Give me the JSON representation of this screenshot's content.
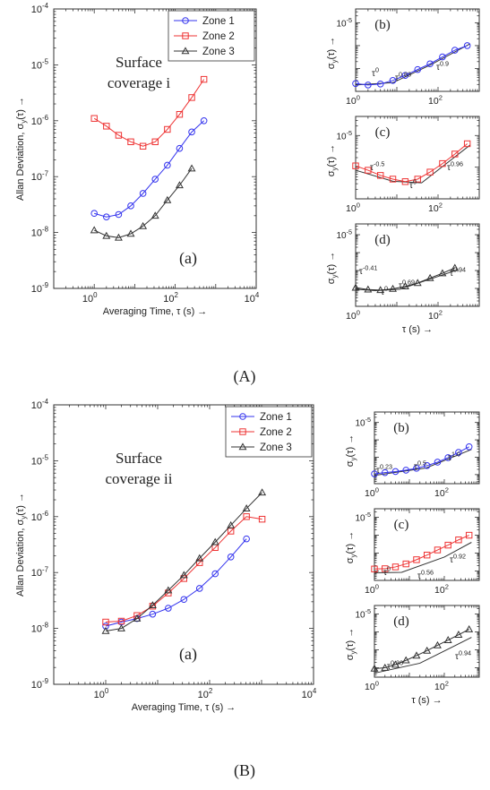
{
  "figure_labels": [
    "(A)",
    "(B)"
  ],
  "axis_labels": {
    "main_y": "Allan Deviation, σ",
    "main_y_sub": "y",
    "main_y_tail": "(τ) →",
    "main_x": "Averaging Time, τ (s) →",
    "small_y": "σ",
    "small_y_sub": "y",
    "small_y_tail": "(τ) →",
    "small_x": "τ (s) →"
  },
  "main_y_ticks": [
    {
      "base": "10",
      "exp": "-9"
    },
    {
      "base": "10",
      "exp": "-8"
    },
    {
      "base": "10",
      "exp": "-7"
    },
    {
      "base": "10",
      "exp": "-6"
    },
    {
      "base": "10",
      "exp": "-5"
    },
    {
      "base": "10",
      "exp": "-4"
    }
  ],
  "main_x_ticks": [
    {
      "base": "10",
      "exp": "0"
    },
    {
      "base": "10",
      "exp": "2"
    },
    {
      "base": "10",
      "exp": "4"
    }
  ],
  "small_x_ticks": [
    {
      "base": "10",
      "exp": "0"
    },
    {
      "base": "10",
      "exp": "2"
    }
  ],
  "small_y_tick": {
    "base": "10",
    "exp": "-5"
  },
  "colors": {
    "zone1": "#3333ee",
    "zone2": "#ee3333",
    "zone3": "#333333",
    "fit": "#333333"
  },
  "chart_data": [
    {
      "id": "A-main",
      "type": "line",
      "panel_label": "(a)",
      "annotation": [
        "Surface",
        "coverage  i"
      ],
      "xscale": "log",
      "yscale": "log",
      "xlim": [
        0.1,
        10000
      ],
      "ylim": [
        1e-09,
        0.0001
      ],
      "legend": "top-right",
      "series": [
        {
          "name": "Zone 1",
          "marker": "circle",
          "color": "#3333ee",
          "x": [
            1,
            2,
            4,
            8,
            16,
            32,
            64,
            128,
            256,
            512
          ],
          "y": [
            2.2e-08,
            1.9e-08,
            2.1e-08,
            3e-08,
            5e-08,
            9e-08,
            1.6e-07,
            3.2e-07,
            6.3e-07,
            1e-06
          ]
        },
        {
          "name": "Zone 2",
          "marker": "square",
          "color": "#ee3333",
          "x": [
            1,
            2,
            4,
            8,
            16,
            32,
            64,
            128,
            256,
            512
          ],
          "y": [
            1.1e-06,
            8e-07,
            5.5e-07,
            4.2e-07,
            3.5e-07,
            4.2e-07,
            7e-07,
            1.3e-06,
            2.6e-06,
            5.5e-06
          ]
        },
        {
          "name": "Zone 3",
          "marker": "triangle",
          "color": "#333333",
          "x": [
            1,
            2,
            4,
            8,
            16,
            32,
            64,
            128,
            256
          ],
          "y": [
            1.1e-08,
            8.7e-09,
            8.1e-09,
            9.5e-09,
            1.3e-08,
            2e-08,
            3.8e-08,
            7e-08,
            1.4e-07
          ]
        }
      ]
    },
    {
      "id": "A-b",
      "type": "line",
      "panel_label": "(b)",
      "xscale": "log",
      "yscale": "log",
      "xlim": [
        1,
        1000
      ],
      "ylim": [
        1e-08,
        4e-05
      ],
      "series": [
        {
          "marker": "circle",
          "color": "#3333ee",
          "x": [
            1,
            2,
            4,
            8,
            16,
            32,
            64,
            128,
            256,
            512
          ],
          "y": [
            2.2e-08,
            1.9e-08,
            2.1e-08,
            3e-08,
            5e-08,
            9e-08,
            1.6e-07,
            3.2e-07,
            6.3e-07,
            1e-06
          ]
        }
      ],
      "fit_labels": [
        {
          "base": "τ",
          "exp": "0"
        },
        {
          "base": "τ",
          "exp": "0.63"
        },
        {
          "base": "τ",
          "exp": "0.9"
        }
      ]
    },
    {
      "id": "A-c",
      "type": "line",
      "panel_label": "(c)",
      "xscale": "log",
      "yscale": "log",
      "xlim": [
        1,
        1000
      ],
      "ylim": [
        1e-07,
        4e-05
      ],
      "series": [
        {
          "marker": "square",
          "color": "#ee3333",
          "x": [
            1,
            2,
            4,
            8,
            16,
            32,
            64,
            128,
            256,
            512
          ],
          "y": [
            1.1e-06,
            8e-07,
            5.5e-07,
            4.2e-07,
            3.5e-07,
            4.2e-07,
            7e-07,
            1.3e-06,
            2.6e-06,
            5.5e-06
          ]
        }
      ],
      "fit_labels": [
        {
          "base": "τ",
          "exp": "-0.5"
        },
        {
          "base": "τ",
          "exp": "0"
        },
        {
          "base": "τ",
          "exp": "0.96"
        }
      ]
    },
    {
      "id": "A-d",
      "type": "line",
      "panel_label": "(d)",
      "xscale": "log",
      "yscale": "log",
      "xlim": [
        1,
        1000
      ],
      "ylim": [
        1e-09,
        4e-05
      ],
      "series": [
        {
          "marker": "triangle",
          "color": "#333333",
          "x": [
            1,
            2,
            4,
            8,
            16,
            32,
            64,
            128,
            256
          ],
          "y": [
            1.1e-08,
            8.7e-09,
            8.1e-09,
            9.5e-09,
            1.3e-08,
            2e-08,
            3.8e-08,
            7e-08,
            1.4e-07
          ]
        }
      ],
      "fit_labels": [
        {
          "base": "τ",
          "exp": "-0.41"
        },
        {
          "base": "τ",
          "exp": "0"
        },
        {
          "base": "τ",
          "exp": "0.69"
        },
        {
          "base": "τ",
          "exp": "0.94"
        }
      ]
    },
    {
      "id": "B-main",
      "type": "line",
      "panel_label": "(a)",
      "annotation": [
        "Surface",
        "coverage  ii"
      ],
      "xscale": "log",
      "yscale": "log",
      "xlim": [
        0.1,
        10000
      ],
      "ylim": [
        1e-09,
        0.0001
      ],
      "legend": "top-right",
      "series": [
        {
          "name": "Zone 1",
          "marker": "circle",
          "color": "#3333ee",
          "x": [
            1,
            2,
            4,
            8,
            16,
            32,
            64,
            128,
            256,
            512
          ],
          "y": [
            1.1e-08,
            1.3e-08,
            1.5e-08,
            1.8e-08,
            2.3e-08,
            3.3e-08,
            5.2e-08,
            9.5e-08,
            1.9e-07,
            4e-07
          ]
        },
        {
          "name": "Zone 2",
          "marker": "square",
          "color": "#ee3333",
          "x": [
            1,
            2,
            4,
            8,
            16,
            32,
            64,
            128,
            256,
            512,
            1024
          ],
          "y": [
            1.3e-08,
            1.35e-08,
            1.7e-08,
            2.5e-08,
            4.3e-08,
            7.8e-08,
            1.5e-07,
            2.8e-07,
            5.5e-07,
            1e-06,
            9e-07
          ]
        },
        {
          "name": "Zone 3",
          "marker": "triangle",
          "color": "#333333",
          "x": [
            1,
            2,
            4,
            8,
            16,
            32,
            64,
            128,
            256,
            512,
            1024
          ],
          "y": [
            9e-09,
            1e-08,
            1.5e-08,
            2.6e-08,
            4.8e-08,
            9e-08,
            1.8e-07,
            3.5e-07,
            7e-07,
            1.4e-06,
            2.7e-06
          ]
        }
      ]
    },
    {
      "id": "B-b",
      "type": "line",
      "panel_label": "(b)",
      "xscale": "log",
      "yscale": "log",
      "xlim": [
        1,
        1000
      ],
      "ylim": [
        3e-09,
        4e-05
      ],
      "series": [
        {
          "marker": "circle",
          "color": "#3333ee",
          "x": [
            1,
            2,
            4,
            8,
            16,
            32,
            64,
            128,
            256,
            512
          ],
          "y": [
            1.1e-08,
            1.3e-08,
            1.5e-08,
            1.8e-08,
            2.3e-08,
            3.3e-08,
            5.2e-08,
            9.5e-08,
            1.9e-07,
            4e-07
          ]
        }
      ],
      "fit_labels": [
        {
          "base": "τ",
          "exp": "0.23"
        },
        {
          "base": "τ",
          "exp": "0.5"
        },
        {
          "base": "τ",
          "exp": "1.0"
        }
      ]
    },
    {
      "id": "B-c",
      "type": "line",
      "panel_label": "(c)",
      "xscale": "log",
      "yscale": "log",
      "xlim": [
        1,
        1000
      ],
      "ylim": [
        3e-09,
        3e-05
      ],
      "series": [
        {
          "marker": "square",
          "color": "#ee3333",
          "x": [
            1,
            2,
            4,
            8,
            16,
            32,
            64,
            128,
            256,
            512
          ],
          "y": [
            1.3e-08,
            1.35e-08,
            1.7e-08,
            2.5e-08,
            4.3e-08,
            7.8e-08,
            1.5e-07,
            2.8e-07,
            5.5e-07,
            1e-06
          ]
        }
      ],
      "fit_labels": [
        {
          "base": "τ",
          "exp": "0"
        },
        {
          "base": "τ",
          "exp": "0.56"
        },
        {
          "base": "τ",
          "exp": "0.92"
        }
      ]
    },
    {
      "id": "B-d",
      "type": "line",
      "panel_label": "(d)",
      "xscale": "log",
      "yscale": "log",
      "xlim": [
        1,
        1000
      ],
      "ylim": [
        3e-09,
        3e-05
      ],
      "series": [
        {
          "marker": "triangle",
          "color": "#333333",
          "x": [
            1,
            2,
            4,
            8,
            16,
            32,
            64,
            128,
            256,
            512
          ],
          "y": [
            9e-09,
            1e-08,
            1.5e-08,
            2.6e-08,
            4.8e-08,
            9e-08,
            1.8e-07,
            3.5e-07,
            7e-07,
            1.4e-06
          ]
        }
      ],
      "fit_labels": [
        {
          "base": "τ",
          "exp": "0.36"
        },
        {
          "base": "τ",
          "exp": "0.94"
        }
      ]
    }
  ]
}
